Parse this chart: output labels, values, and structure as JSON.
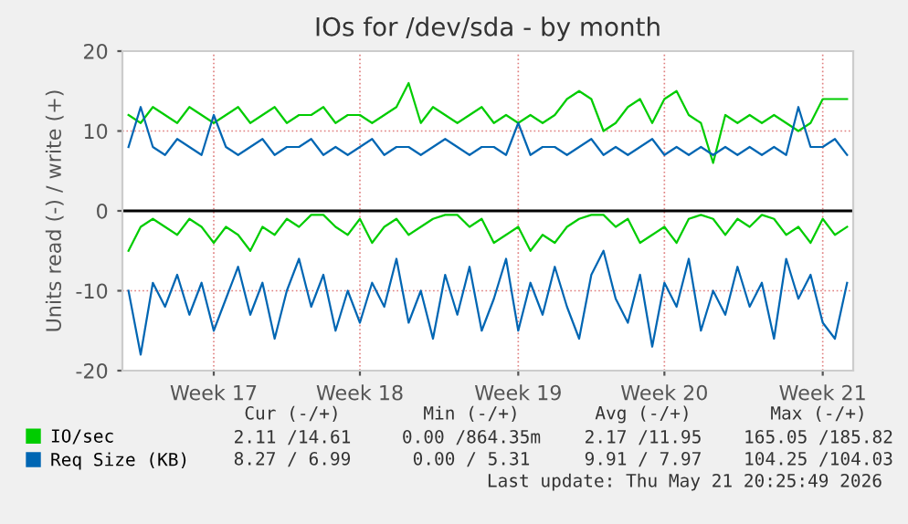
{
  "chart_data": {
    "type": "line",
    "title": "IOs for /dev/sda - by month",
    "ylabel": "Units read (-) / write (+)",
    "categories": [
      null,
      null,
      null,
      null,
      null,
      null,
      null,
      "Week 17",
      null,
      null,
      null,
      null,
      null,
      null,
      null,
      null,
      null,
      null,
      null,
      "Week 18",
      null,
      null,
      null,
      null,
      null,
      null,
      null,
      null,
      null,
      null,
      null,
      null,
      "Week 19",
      null,
      null,
      null,
      null,
      null,
      null,
      null,
      null,
      null,
      null,
      null,
      "Week 20",
      null,
      null,
      null,
      null,
      null,
      null,
      null,
      null,
      null,
      null,
      null,
      null,
      "Week 21",
      null,
      null
    ],
    "ylim": [
      -20,
      20
    ],
    "yticks": [
      -20,
      -10,
      0,
      10,
      20
    ],
    "grid": true,
    "legend": "bottom",
    "marker": "none",
    "line_style": "solid",
    "series": [
      {
        "name": "IO/sec",
        "color": "#00cc00",
        "values": [
          12,
          11,
          13,
          12,
          11,
          13,
          12,
          11,
          12,
          13,
          11,
          12,
          13,
          11,
          12,
          12,
          13,
          11,
          12,
          12,
          11,
          12,
          13,
          16,
          11,
          13,
          12,
          11,
          12,
          13,
          11,
          12,
          11,
          12,
          11,
          12,
          14,
          15,
          14,
          10,
          11,
          13,
          14,
          11,
          14,
          15,
          12,
          11,
          6,
          12,
          11,
          12,
          11,
          12,
          11,
          10,
          11,
          14,
          14,
          14
        ]
      },
      {
        "name": "Req Size (KB)",
        "color": "#0066b3",
        "values": [
          8,
          13,
          8,
          7,
          9,
          8,
          7,
          12,
          8,
          7,
          8,
          9,
          7,
          8,
          8,
          9,
          7,
          8,
          7,
          8,
          9,
          7,
          8,
          8,
          7,
          8,
          9,
          8,
          7,
          8,
          8,
          7,
          11,
          7,
          8,
          8,
          7,
          8,
          9,
          7,
          8,
          7,
          8,
          9,
          7,
          8,
          7,
          8,
          7,
          8,
          7,
          8,
          7,
          8,
          7,
          13,
          8,
          8,
          9,
          7
        ]
      },
      {
        "color": "#00cc00",
        "values": [
          -5,
          -2,
          -1,
          -2,
          -3,
          -1,
          -2,
          -4,
          -2,
          -3,
          -5,
          -2,
          -3,
          -1,
          -2,
          -0.5,
          -0.5,
          -2,
          -3,
          -1,
          -4,
          -2,
          -1,
          -3,
          -2,
          -1,
          -0.5,
          -0.5,
          -2,
          -1,
          -4,
          -3,
          -2,
          -5,
          -3,
          -4,
          -2,
          -1,
          -0.5,
          -0.5,
          -2,
          -1,
          -4,
          -3,
          -2,
          -4,
          -1,
          -0.5,
          -1,
          -3,
          -1,
          -2,
          -0.5,
          -1,
          -3,
          -2,
          -4,
          -1,
          -3,
          -2
        ]
      },
      {
        "color": "#0066b3",
        "values": [
          -10,
          -18,
          -9,
          -12,
          -8,
          -13,
          -9,
          -15,
          -11,
          -7,
          -13,
          -9,
          -16,
          -10,
          -6,
          -12,
          -8,
          -15,
          -10,
          -14,
          -9,
          -12,
          -6,
          -14,
          -10,
          -16,
          -8,
          -13,
          -7,
          -15,
          -11,
          -6,
          -15,
          -9,
          -13,
          -7,
          -12,
          -16,
          -8,
          -5,
          -11,
          -14,
          -8,
          -17,
          -9,
          -12,
          -6,
          -15,
          -10,
          -13,
          -7,
          -12,
          -9,
          -16,
          -6,
          -11,
          -8,
          -14,
          -16,
          -9
        ]
      }
    ],
    "ref_lines": [
      {
        "axis": "y",
        "value": 0,
        "color": "#000000"
      }
    ],
    "annotations": [
      "Cur (-/+)",
      "Min (-/+)",
      "Avg (-/+)",
      "Max (-/+)",
      "2.11 /14.61",
      "0.00 /864.35m",
      "2.17 /11.95",
      "165.05 /185.82",
      "8.27 / 6.99",
      "0.00 / 5.31",
      "9.91 / 7.97",
      "104.25 /104.03",
      "Last update: Thu May 21 20:25:49 2026"
    ]
  }
}
